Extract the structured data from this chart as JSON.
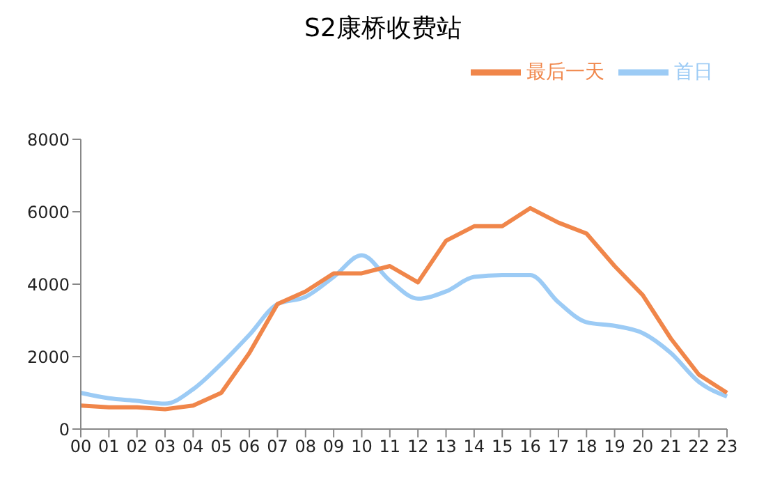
{
  "chart_data": {
    "type": "line",
    "title": "S2康桥收费站",
    "categories": [
      "00",
      "01",
      "02",
      "03",
      "04",
      "05",
      "06",
      "07",
      "08",
      "09",
      "10",
      "11",
      "12",
      "13",
      "14",
      "15",
      "16",
      "17",
      "18",
      "19",
      "20",
      "21",
      "22",
      "23"
    ],
    "series": [
      {
        "name": "首日",
        "color": "#9ccbf5",
        "values": [
          1000,
          850,
          780,
          700,
          1100,
          1800,
          2600,
          3450,
          3650,
          4200,
          4800,
          4100,
          3600,
          3800,
          4200,
          4250,
          4250,
          3500,
          2950,
          2850,
          2650,
          2100,
          1300,
          900
        ]
      },
      {
        "name": "最后一天",
        "color": "#f0864a",
        "values": [
          650,
          600,
          600,
          550,
          650,
          1000,
          2100,
          3450,
          3800,
          4300,
          4300,
          4500,
          4050,
          5200,
          5600,
          5600,
          6100,
          5700,
          5400,
          4500,
          3700,
          2500,
          1500,
          1000
        ]
      }
    ],
    "ylim": [
      0,
      8000
    ],
    "yticks": [
      0,
      2000,
      4000,
      6000,
      8000
    ],
    "grid": false,
    "legend": "top right",
    "marker": "none",
    "line_style": "solid"
  }
}
